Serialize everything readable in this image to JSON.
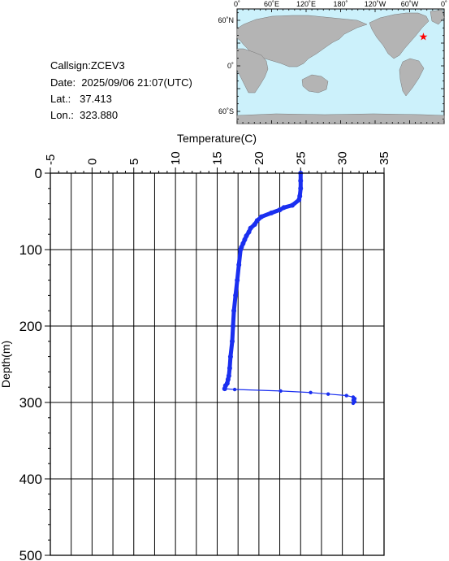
{
  "header": {
    "callsign": "Callsign:ZCEV3",
    "date": "Date:  2025/09/06 21:07(UTC)",
    "lat": "Lat.:   37.413",
    "lon": "Lon.:  323.880"
  },
  "map": {
    "lon_labels": [
      "0˚",
      "60˚E",
      "120˚E",
      "180˚",
      "120˚W",
      "60˚W",
      "0˚"
    ],
    "lat_labels": [
      "60˚N",
      "0˚",
      "60˚S"
    ],
    "marker": {
      "lat": 37.413,
      "lon": 323.88
    },
    "ocean_color": "#ccf1fb",
    "land_color": "#b4b4b4",
    "marker_color": "#ff0000"
  },
  "chart_data": {
    "type": "line",
    "xlabel": "Temperature(C)",
    "ylabel": "Depth(m)",
    "xlim": [
      -5,
      35
    ],
    "ylim": [
      500,
      0
    ],
    "x_ticks": [
      -5,
      0,
      5,
      10,
      15,
      20,
      25,
      30,
      35
    ],
    "y_ticks": [
      0,
      100,
      200,
      300,
      400,
      500
    ],
    "grid": true,
    "line_color": "#1a2ff0",
    "series": [
      {
        "x": [
          25.0,
          25.0,
          25.0,
          24.9,
          24.8,
          24.0,
          23.0,
          22.5,
          21.5,
          20.3,
          19.8,
          19.5,
          19.0,
          18.8,
          18.5,
          18.3,
          18.1,
          17.9,
          17.8,
          17.6,
          17.4,
          17.2,
          17.0,
          16.9,
          16.8,
          16.6,
          16.5,
          16.4,
          16.3,
          16.2,
          16.0,
          15.9,
          17.1,
          22.6,
          26.2,
          28.3,
          30.5,
          31.3,
          31.5,
          31.3,
          31.5,
          31.3
        ],
        "y": [
          0,
          10,
          20,
          30,
          35,
          42,
          45,
          48,
          52,
          57,
          62,
          67,
          72,
          77,
          82,
          87,
          92,
          97,
          100,
          120,
          140,
          160,
          180,
          200,
          220,
          240,
          255,
          265,
          270,
          275,
          278,
          282,
          283,
          285,
          287,
          289,
          291,
          293,
          295,
          297,
          299,
          301
        ]
      }
    ]
  }
}
